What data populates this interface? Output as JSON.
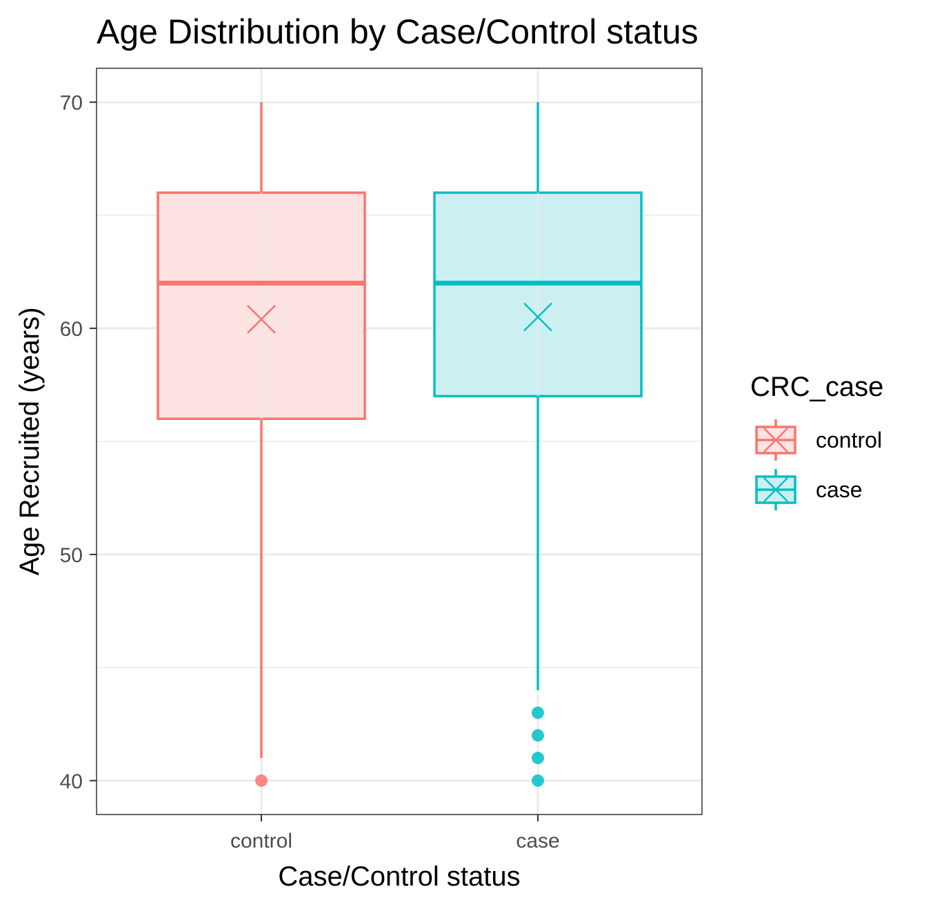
{
  "chart_data": {
    "type": "box",
    "title": "Age Distribution by Case/Control status",
    "xlabel": "Case/Control status",
    "ylabel": "Age Recruited (years)",
    "ylim": [
      38.5,
      71.5
    ],
    "yticks": [
      40,
      50,
      60,
      70
    ],
    "categories": [
      "control",
      "case"
    ],
    "grid": true,
    "legend": {
      "title": "CRC_case",
      "placement": "right",
      "entries": [
        "control",
        "case"
      ]
    },
    "series": [
      {
        "name": "control",
        "color": "#F8766D",
        "fill": "#FDE3E2",
        "whisker_low": 41,
        "q1": 56,
        "median": 62,
        "q3": 66,
        "whisker_high": 70,
        "mean": 60.4,
        "outliers": [
          40
        ]
      },
      {
        "name": "case",
        "color": "#00BFC4",
        "fill": "#CCF0F1",
        "whisker_low": 44,
        "q1": 57,
        "median": 62,
        "q3": 66,
        "whisker_high": 70,
        "mean": 60.5,
        "outliers": [
          43,
          42,
          41,
          40
        ]
      }
    ]
  }
}
